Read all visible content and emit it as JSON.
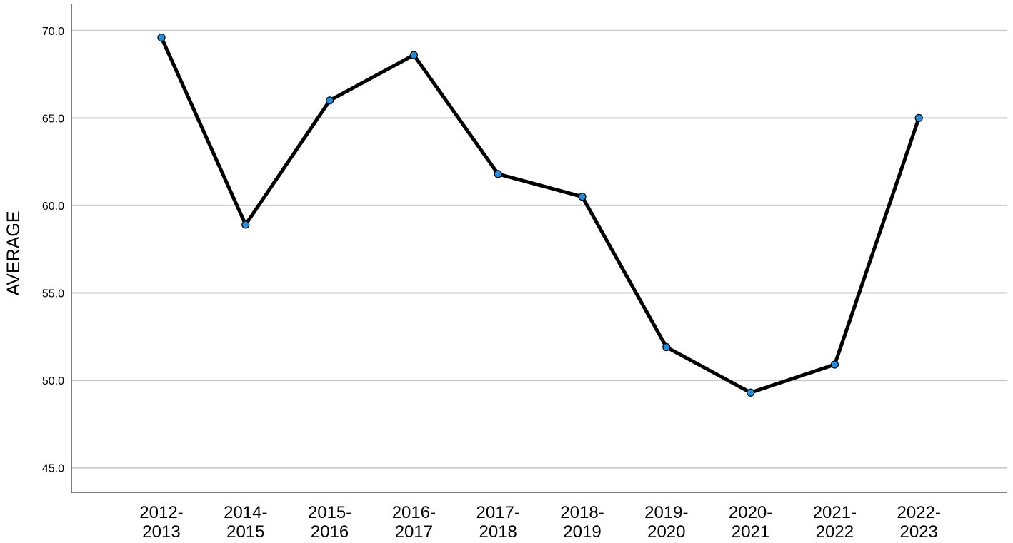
{
  "chart_data": {
    "type": "line",
    "title": "",
    "xlabel": "",
    "ylabel": "AVERAGE",
    "categories": [
      "2012-2013",
      "2014-2015",
      "2015-2016",
      "2016-2017",
      "2017-2018",
      "2018-2019",
      "2019-2020",
      "2020-2021",
      "2021-2022",
      "2022-2023"
    ],
    "series": [
      {
        "values": [
          69.6,
          58.9,
          66.0,
          68.6,
          61.8,
          60.5,
          51.9,
          49.3,
          50.9,
          65.0
        ]
      }
    ],
    "ylim": [
      43.6,
      71.5
    ],
    "yticks": [
      "45.0",
      "50.0",
      "55.0",
      "60.0",
      "65.0",
      "70.0"
    ],
    "grid": true,
    "legend": "none",
    "colors": {
      "line": "#000000",
      "marker_fill": "#1f8fe0",
      "marker_stroke": "#000000",
      "grid": "#c8c8c8",
      "axis": "#555555"
    }
  }
}
